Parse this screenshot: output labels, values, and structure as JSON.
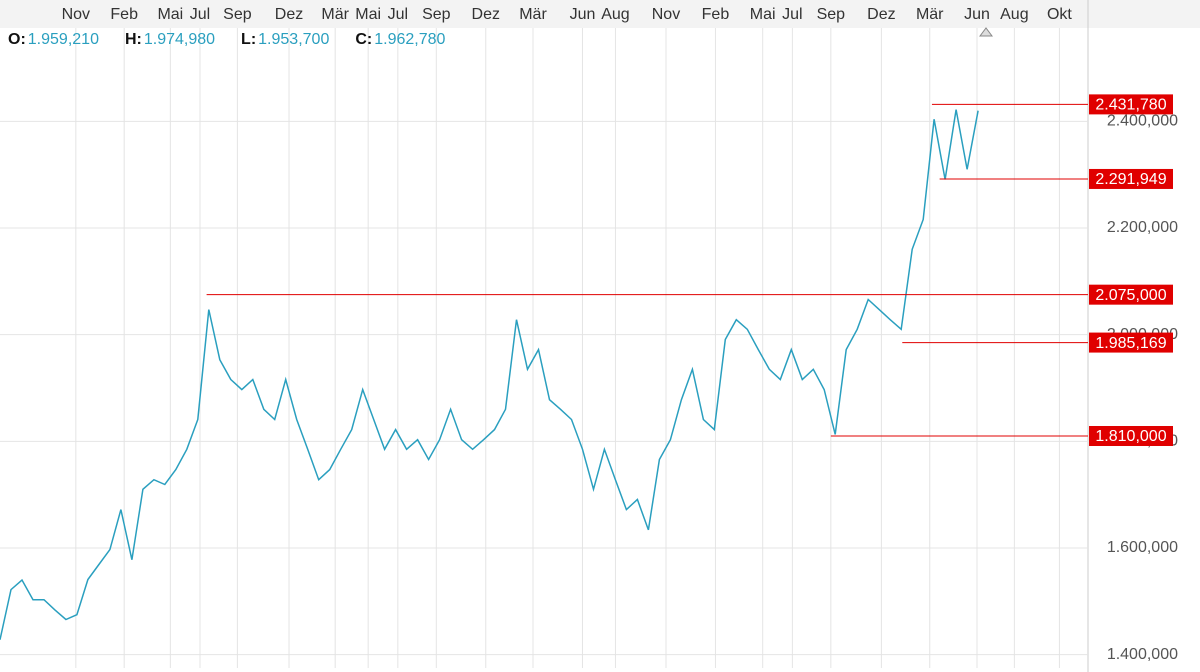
{
  "chart_data": {
    "type": "line",
    "ohlc": [
      {
        "key": "O:",
        "value": "1.959,210"
      },
      {
        "key": "H:",
        "value": "1.974,980"
      },
      {
        "key": "L:",
        "value": "1.953,700"
      },
      {
        "key": "C:",
        "value": "1.962,780"
      }
    ],
    "xlim": [
      0,
      99
    ],
    "xticks": [
      {
        "value": 6.9,
        "label": "Nov"
      },
      {
        "value": 11.3,
        "label": "Feb"
      },
      {
        "value": 15.5,
        "label": "Mai"
      },
      {
        "value": 18.2,
        "label": "Jul"
      },
      {
        "value": 21.6,
        "label": "Sep"
      },
      {
        "value": 26.3,
        "label": "Dez"
      },
      {
        "value": 30.5,
        "label": "Mär"
      },
      {
        "value": 33.5,
        "label": "Mai"
      },
      {
        "value": 36.2,
        "label": "Jul"
      },
      {
        "value": 39.7,
        "label": "Sep"
      },
      {
        "value": 44.2,
        "label": "Dez"
      },
      {
        "value": 48.5,
        "label": "Mär"
      },
      {
        "value": 53,
        "label": "Jun"
      },
      {
        "value": 56,
        "label": "Aug"
      },
      {
        "value": 60.6,
        "label": "Nov"
      },
      {
        "value": 65.1,
        "label": "Feb"
      },
      {
        "value": 69.4,
        "label": "Mai"
      },
      {
        "value": 72.1,
        "label": "Jul"
      },
      {
        "value": 75.6,
        "label": "Sep"
      },
      {
        "value": 80.2,
        "label": "Dez"
      },
      {
        "value": 84.6,
        "label": "Mär"
      },
      {
        "value": 88.9,
        "label": "Jun"
      },
      {
        "value": 92.3,
        "label": "Aug"
      },
      {
        "value": 96.4,
        "label": "Okt"
      }
    ],
    "ylim": [
      1375000,
      2575000
    ],
    "yticks": [
      {
        "value": 1400000,
        "label": "1.400,000"
      },
      {
        "value": 1600000,
        "label": "1.600,000"
      },
      {
        "value": 1800000,
        "label": "1.800,000"
      },
      {
        "value": 2000000,
        "label": "2.000,000"
      },
      {
        "value": 2200000,
        "label": "2.200,000"
      },
      {
        "value": 2400000,
        "label": "2.400,000"
      }
    ],
    "grid": true,
    "series": [
      {
        "color": "#2a9fbf",
        "values": [
          1428000,
          1522000,
          1540000,
          1503000,
          1503000,
          1484000,
          1466000,
          1475000,
          1541000,
          1569000,
          1597000,
          1672000,
          1578000,
          1710000,
          1728000,
          1719000,
          1747000,
          1785000,
          1841000,
          2047000,
          1953000,
          1916000,
          1897000,
          1916000,
          1860000,
          1841000,
          1916000,
          1841000,
          1785000,
          1728000,
          1747000,
          1785000,
          1822000,
          1897000,
          1841000,
          1785000,
          1822000,
          1785000,
          1803000,
          1766000,
          1803000,
          1860000,
          1803000,
          1785000,
          1803000,
          1822000,
          1860000,
          2028000,
          1935000,
          1972000,
          1878000,
          1860000,
          1841000,
          1785000,
          1710000,
          1785000,
          1728000,
          1672000,
          1691000,
          1634000,
          1766000,
          1803000,
          1878000,
          1935000,
          1841000,
          1822000,
          1991000,
          2028000,
          2010000,
          1972000,
          1935000,
          1916000,
          1972000,
          1916000,
          1935000,
          1897000,
          1813000,
          1972000,
          2010000,
          2066000,
          2047000,
          2028000,
          2010000,
          2160000,
          2216000,
          2404000,
          2291000,
          2422000,
          2310000,
          2420000
        ]
      }
    ],
    "levels": [
      {
        "value": 2431780,
        "label": "2.431,780",
        "start": 84.8
      },
      {
        "value": 2291949,
        "label": "2.291,949",
        "start": 85.5
      },
      {
        "value": 2075000,
        "label": "2.075,000",
        "start": 18.8
      },
      {
        "value": 1985169,
        "label": "1.985,169",
        "start": 82.1
      },
      {
        "value": 1810000,
        "label": "1.810,000",
        "start": 75.6
      }
    ],
    "level_color": "#e00000"
  }
}
